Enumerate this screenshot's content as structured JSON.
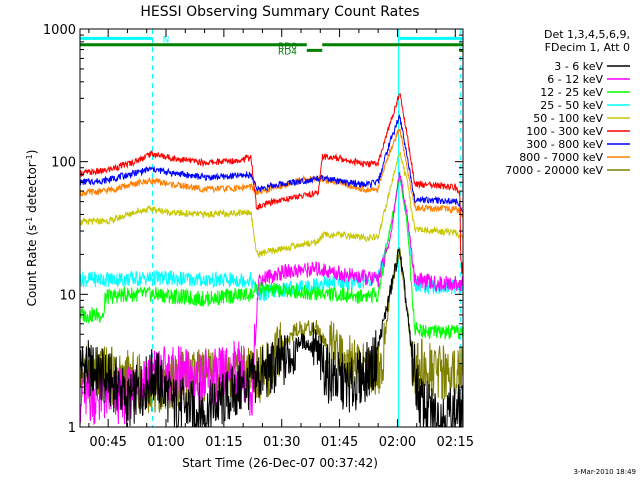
{
  "chart_data": {
    "type": "line",
    "title": "HESSI Observing Summary Count Rates",
    "xlabel": "Start Time (26-Dec-07 00:37:42)",
    "ylabel_main": "Count Rate (s",
    "ylabel_sup1": "-1",
    "ylabel_mid": " detector",
    "ylabel_sup2": "-1",
    "ylabel_end": ")",
    "yscale": "log",
    "ylim": [
      1,
      1000
    ],
    "xlim_minutes": [
      37.7,
      137.0
    ],
    "x_ticks": [
      {
        "label": "00:45",
        "minutes": 45
      },
      {
        "label": "01:00",
        "minutes": 60
      },
      {
        "label": "01:15",
        "minutes": 75
      },
      {
        "label": "01:30",
        "minutes": 90
      },
      {
        "label": "01:45",
        "minutes": 105
      },
      {
        "label": "02:00",
        "minutes": 120
      },
      {
        "label": "02:15",
        "minutes": 135
      }
    ],
    "y_ticks": [
      {
        "label": "1",
        "value": 1
      },
      {
        "label": "10",
        "value": 10
      },
      {
        "label": "100",
        "value": 100
      },
      {
        "label": "1000",
        "value": 1000
      }
    ],
    "legend_position": "right",
    "legend_header": [
      "Det 1,3,4,5,6,9,",
      "FDecim 1, Att 0"
    ],
    "footer_date": "3-Mar-2010 18:49",
    "flag_bars": [
      {
        "label": "N",
        "color": "#00ffff",
        "value": 850,
        "segments": [
          [
            37.7,
            56.5
          ],
          [
            120.5,
            137.0
          ]
        ]
      },
      {
        "label": "RD0",
        "color": "#008000",
        "value": 760,
        "segments": [
          [
            37.7,
            96.5
          ],
          [
            100.5,
            137.0
          ]
        ]
      },
      {
        "label": "RD4",
        "color": "#008000",
        "value": 690,
        "segments": [
          [
            96.5,
            100.5
          ],
          [
            136.0,
            137.0
          ]
        ]
      }
    ],
    "vertical_markers": [
      {
        "minutes": 56.5,
        "style": "dashed",
        "color": "#00ffff"
      },
      {
        "minutes": 120.3,
        "style": "solid",
        "color": "#00ffff"
      },
      {
        "minutes": 136.3,
        "style": "dashed",
        "color": "#00ffff"
      }
    ],
    "series": [
      {
        "name": "3 - 6 keV",
        "color": "#000000",
        "points": [
          [
            37.7,
            3
          ],
          [
            48,
            2
          ],
          [
            50,
            1.5
          ],
          [
            57,
            2.5
          ],
          [
            62,
            1.5
          ],
          [
            70,
            1.3
          ],
          [
            80,
            2
          ],
          [
            85,
            2.5
          ],
          [
            90,
            3
          ],
          [
            95,
            4.5
          ],
          [
            98,
            4
          ],
          [
            102,
            2.5
          ],
          [
            108,
            2
          ],
          [
            114,
            3
          ],
          [
            118,
            10
          ],
          [
            120.5,
            22
          ],
          [
            122,
            10
          ],
          [
            124,
            3
          ],
          [
            126,
            1.5
          ],
          [
            130,
            1.2
          ],
          [
            137,
            1.3
          ]
        ]
      },
      {
        "name": "6 - 12 keV",
        "color": "#ff00ff",
        "points": [
          [
            37.7,
            1.7
          ],
          [
            50,
            1.7
          ],
          [
            53,
            2.2
          ],
          [
            56,
            2.5
          ],
          [
            60,
            2.5
          ],
          [
            66,
            2.4
          ],
          [
            72,
            2.3
          ],
          [
            76,
            2.6
          ],
          [
            80,
            2.8
          ],
          [
            82,
            1.2
          ],
          [
            84,
            13
          ],
          [
            92,
            15
          ],
          [
            100,
            15.5
          ],
          [
            104,
            14.5
          ],
          [
            110,
            13.5
          ],
          [
            115,
            13
          ],
          [
            118,
            25
          ],
          [
            120.6,
            85
          ],
          [
            122.5,
            40
          ],
          [
            124.5,
            13
          ],
          [
            130,
            12
          ],
          [
            135,
            12
          ],
          [
            137,
            12
          ]
        ]
      },
      {
        "name": "12 - 25 keV",
        "color": "#00ff00",
        "points": [
          [
            37.7,
            7
          ],
          [
            44,
            7
          ],
          [
            44.2,
            9.5
          ],
          [
            50,
            10
          ],
          [
            57,
            10
          ],
          [
            63,
            9.6
          ],
          [
            70,
            9.2
          ],
          [
            78,
            9.8
          ],
          [
            82,
            10
          ],
          [
            84,
            11
          ],
          [
            92,
            10.6
          ],
          [
            100,
            10.2
          ],
          [
            104,
            10
          ],
          [
            110,
            9.7
          ],
          [
            115,
            10
          ],
          [
            118,
            30
          ],
          [
            120.6,
            80
          ],
          [
            122.5,
            35
          ],
          [
            124.5,
            5.5
          ],
          [
            130,
            5.2
          ],
          [
            135,
            5.1
          ],
          [
            137,
            5.2
          ]
        ]
      },
      {
        "name": "25 - 50 keV",
        "color": "#00ffff",
        "points": [
          [
            37.7,
            13
          ],
          [
            50,
            13
          ],
          [
            57,
            13.3
          ],
          [
            66,
            13
          ],
          [
            72,
            12.8
          ],
          [
            78,
            12.8
          ],
          [
            82,
            13
          ],
          [
            84,
            10
          ],
          [
            90,
            10.8
          ],
          [
            96,
            11.4
          ],
          [
            100,
            12
          ],
          [
            104,
            12.5
          ],
          [
            110,
            12.5
          ],
          [
            115,
            13
          ],
          [
            118,
            30
          ],
          [
            120.6,
            75
          ],
          [
            122.5,
            35
          ],
          [
            124.5,
            12
          ],
          [
            130,
            11.5
          ],
          [
            135,
            11.2
          ],
          [
            137,
            11
          ]
        ]
      },
      {
        "name": "50 - 100 keV",
        "color": "#c8c800",
        "points": [
          [
            37.7,
            35
          ],
          [
            46,
            36
          ],
          [
            52,
            42
          ],
          [
            56,
            44
          ],
          [
            62,
            41
          ],
          [
            70,
            40
          ],
          [
            78,
            41
          ],
          [
            82,
            42
          ],
          [
            83.5,
            20
          ],
          [
            90,
            22
          ],
          [
            96,
            24
          ],
          [
            99.5,
            25
          ],
          [
            100.5,
            28
          ],
          [
            106,
            28
          ],
          [
            112,
            26.5
          ],
          [
            115,
            27
          ],
          [
            118,
            60
          ],
          [
            120.6,
            120
          ],
          [
            122.5,
            70
          ],
          [
            124.5,
            31
          ],
          [
            130,
            30
          ],
          [
            135,
            29
          ],
          [
            137,
            27
          ]
        ]
      },
      {
        "name": "100 - 300 keV",
        "color": "#ff0000",
        "points": [
          [
            37.7,
            82
          ],
          [
            44,
            85
          ],
          [
            52,
            100
          ],
          [
            56,
            115
          ],
          [
            62,
            106
          ],
          [
            70,
            98
          ],
          [
            78,
            102
          ],
          [
            82,
            108
          ],
          [
            83.5,
            45
          ],
          [
            88,
            50
          ],
          [
            96,
            56
          ],
          [
            99.5,
            58
          ],
          [
            100.5,
            110
          ],
          [
            106,
            105
          ],
          [
            112,
            95
          ],
          [
            115,
            98
          ],
          [
            118,
            190
          ],
          [
            120.6,
            330
          ],
          [
            122.5,
            160
          ],
          [
            124.5,
            68
          ],
          [
            130,
            66
          ],
          [
            135,
            64
          ],
          [
            136.2,
            60
          ],
          [
            136.4,
            16
          ],
          [
            137,
            16
          ]
        ]
      },
      {
        "name": "300 - 800 keV",
        "color": "#0000ff",
        "points": [
          [
            37.7,
            70
          ],
          [
            44,
            72
          ],
          [
            52,
            82
          ],
          [
            56,
            88
          ],
          [
            62,
            82
          ],
          [
            70,
            76
          ],
          [
            78,
            78
          ],
          [
            82,
            80
          ],
          [
            83.5,
            62
          ],
          [
            90,
            68
          ],
          [
            96,
            72
          ],
          [
            100,
            75
          ],
          [
            106,
            70
          ],
          [
            112,
            67
          ],
          [
            115,
            70
          ],
          [
            118,
            140
          ],
          [
            120.6,
            220
          ],
          [
            122.5,
            110
          ],
          [
            124.5,
            52
          ],
          [
            130,
            51
          ],
          [
            135,
            50
          ],
          [
            137,
            44
          ]
        ]
      },
      {
        "name": "800 - 7000 keV",
        "color": "#ff8000",
        "points": [
          [
            37.7,
            58
          ],
          [
            44,
            60
          ],
          [
            52,
            68
          ],
          [
            56,
            72
          ],
          [
            62,
            67
          ],
          [
            70,
            62
          ],
          [
            78,
            63
          ],
          [
            82,
            65
          ],
          [
            83.5,
            58
          ],
          [
            90,
            66
          ],
          [
            96,
            74
          ],
          [
            100,
            75
          ],
          [
            106,
            68
          ],
          [
            112,
            61
          ],
          [
            115,
            62
          ],
          [
            118,
            120
          ],
          [
            120.6,
            180
          ],
          [
            122.5,
            90
          ],
          [
            124.5,
            45
          ],
          [
            130,
            44
          ],
          [
            135,
            44
          ],
          [
            137,
            40
          ]
        ]
      },
      {
        "name": "7000 - 20000 keV",
        "color": "#7f7f00",
        "points": [
          [
            37.7,
            2.5
          ],
          [
            44,
            2.5
          ],
          [
            50,
            2.3
          ],
          [
            57,
            2
          ],
          [
            62,
            2.2
          ],
          [
            70,
            2.4
          ],
          [
            78,
            2.3
          ],
          [
            82,
            2.4
          ],
          [
            86,
            2.6
          ],
          [
            90,
            4
          ],
          [
            94,
            5.5
          ],
          [
            99,
            5.6
          ],
          [
            102,
            4
          ],
          [
            106,
            3.2
          ],
          [
            112,
            2.6
          ],
          [
            116,
            2.8
          ],
          [
            118,
            10
          ],
          [
            120.6,
            22
          ],
          [
            122,
            10
          ],
          [
            124,
            3
          ],
          [
            130,
            2.6
          ],
          [
            135,
            2.5
          ],
          [
            137,
            2.6
          ]
        ]
      }
    ]
  }
}
